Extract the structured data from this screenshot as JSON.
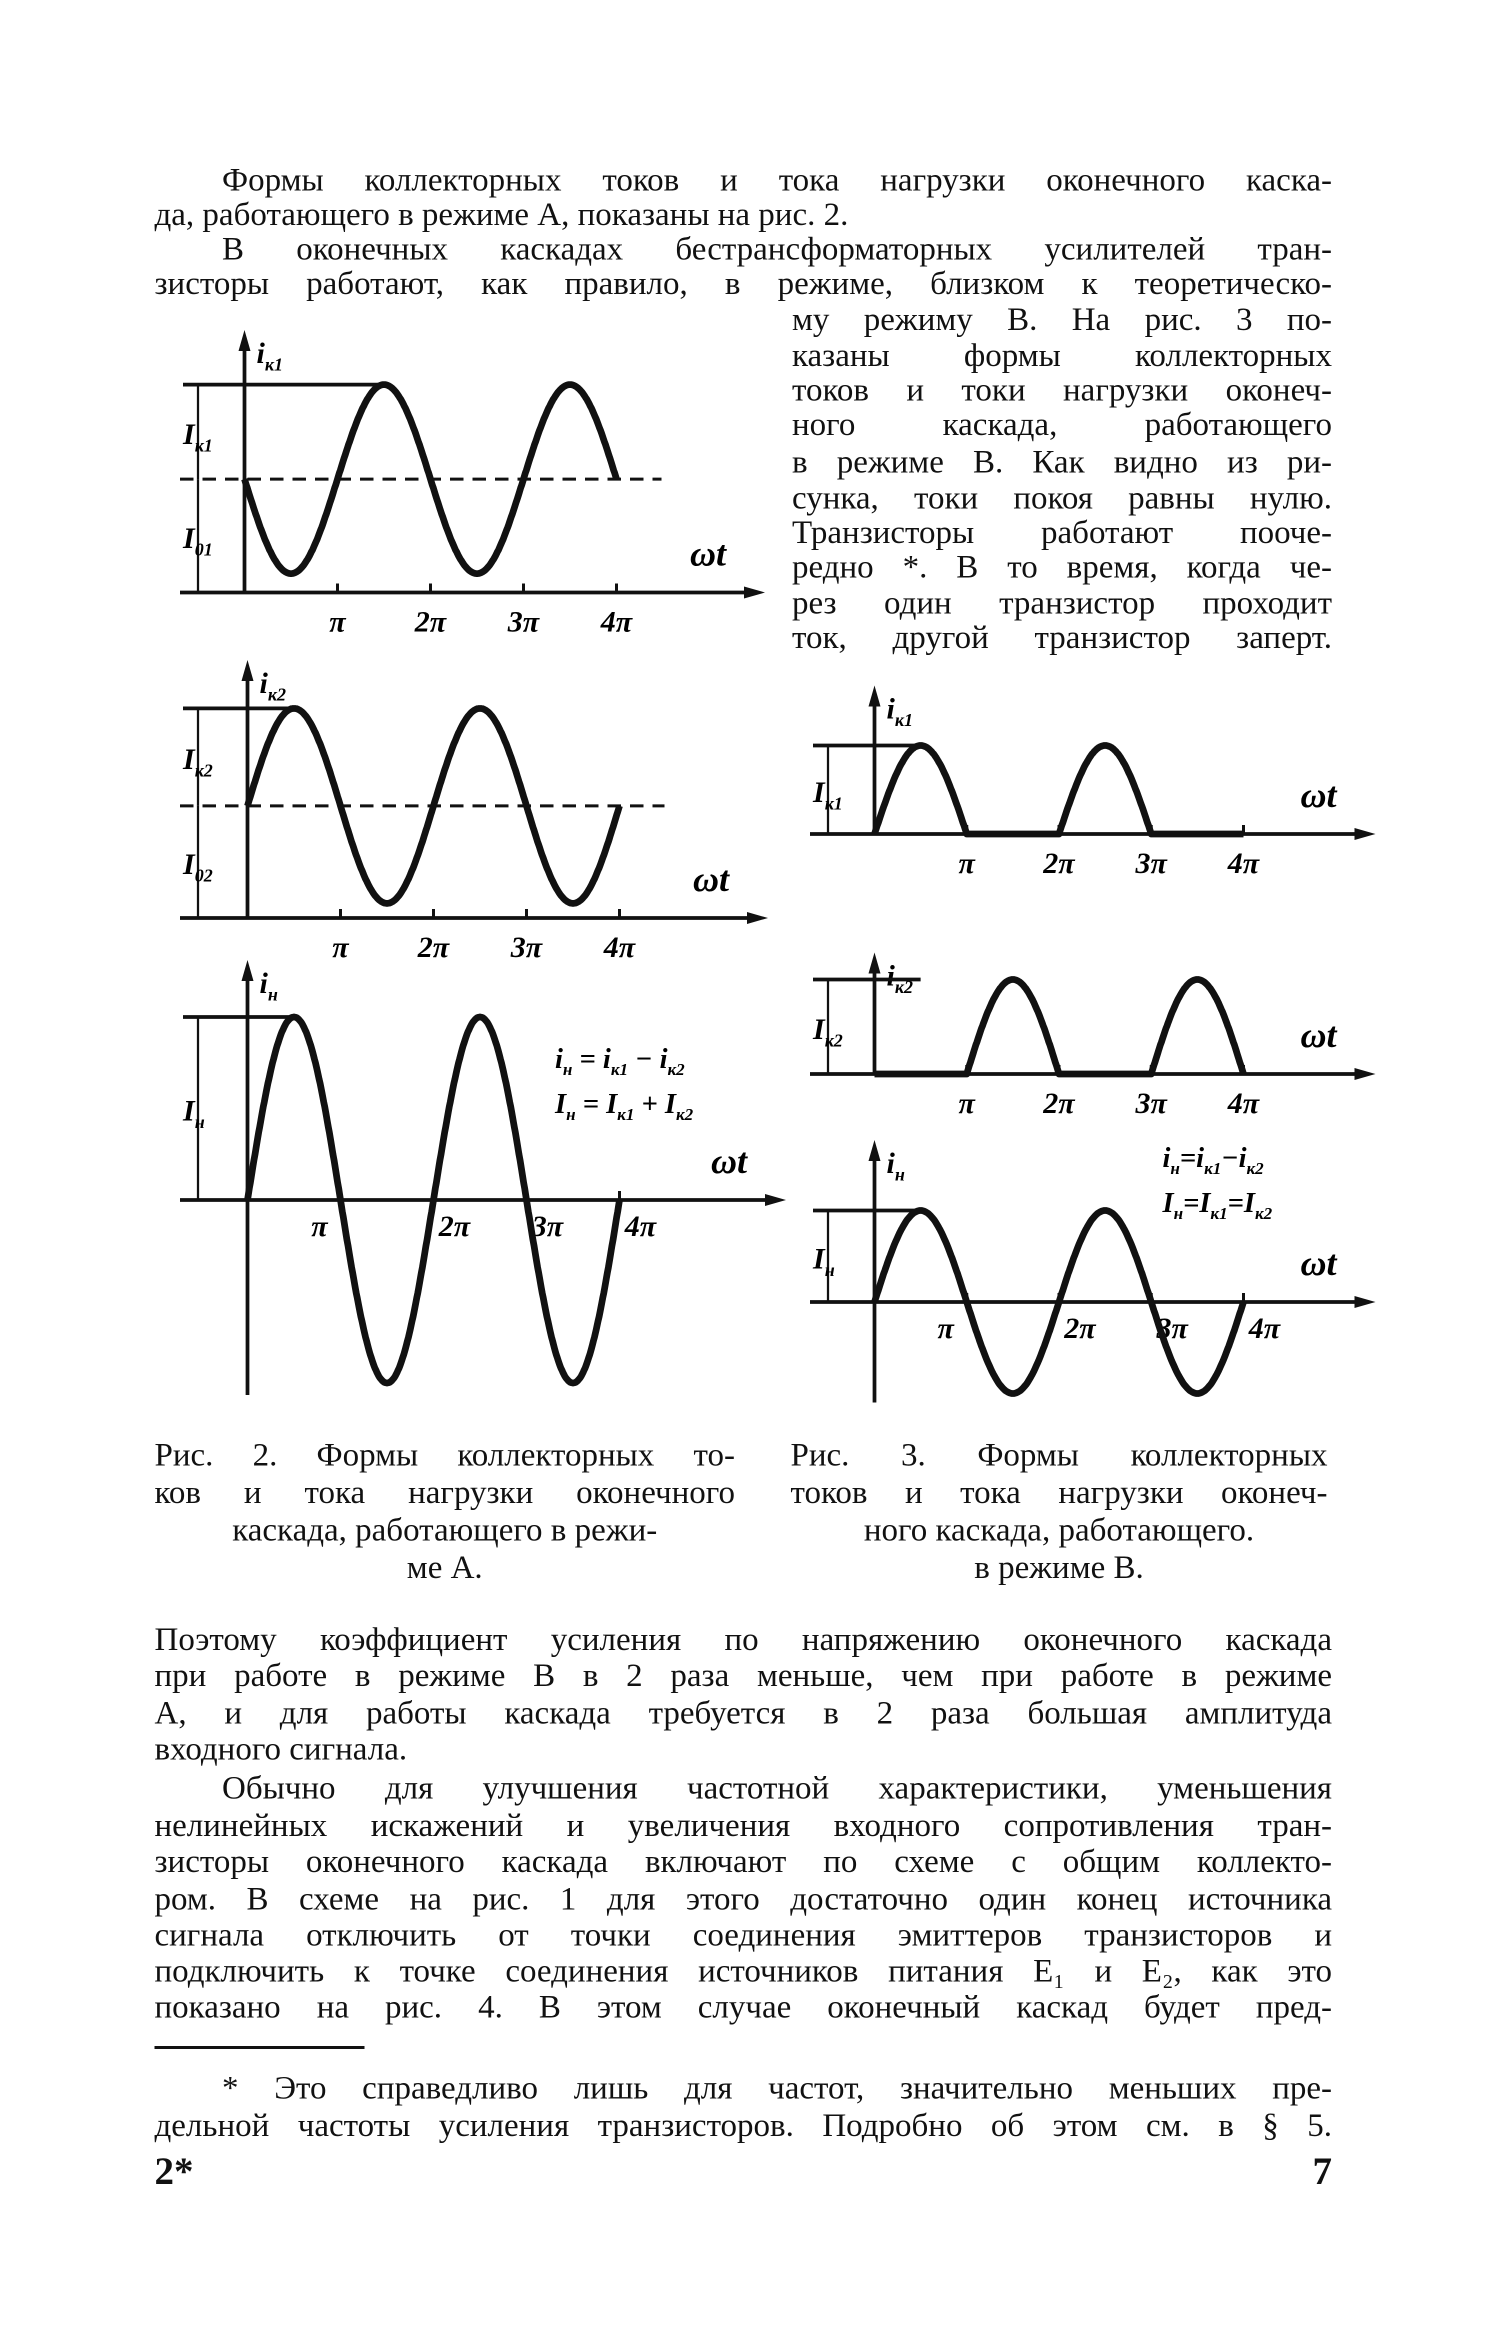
{
  "text": {
    "para1": [
      "Формы коллекторных токов и тока нагрузки оконечного каска-",
      "да, работающего в режиме А, показаны на рис. 2."
    ],
    "para2_full": [
      "В оконечных каскадах бестрансформаторных усилителей тран-",
      "зисторы работают, как правило, в режиме, близком к теоретическо-"
    ],
    "para2_column": [
      "му режиму В. На рис. 3 по-",
      "казаны формы коллекторных",
      "токов и токи нагрузки оконеч-",
      "ного каскада, работающего",
      "в режиме В. Как видно из ри-",
      "сунка, токи покоя равны нулю.",
      "Транзисторы работают пооче-",
      "редно *. В то время, когда че-",
      "рез один транзистор проходит",
      "ток, другой транзистор заперт."
    ],
    "caption_fig2": [
      "Рис. 2. Формы коллекторных то-",
      "ков и тока нагрузки оконечного",
      "каскада, работающего в режи-",
      "ме А."
    ],
    "caption_fig3": [
      "Рис. 3. Формы коллекторных",
      "токов и тока нагрузки оконеч-",
      "ного каскада, работающего.",
      "в режиме В."
    ],
    "para3": [
      "Поэтому коэффициент усиления по напряжению оконечного каскада",
      "при работе в режиме В в 2 раза меньше, чем при работе в режиме",
      "А, и для работы каскада требуется в 2 раза большая амплитуда",
      "входного сигнала."
    ],
    "para4": [
      "Обычно для улучшения частотной характеристики, уменьшения",
      "нелинейных искажений и увеличения входного сопротивления тран-",
      "зисторы оконечного каскада включают по схеме с общим коллекто-",
      "ром. В схеме на рис. 1 для этого достаточно один конец источника",
      "сигнала отключить от точки соединения эмиттеров транзисторов и",
      "подключить к точке соединения источников питания E₁ и E₂, как это",
      "показано на рис. 4. В этом случае оконечный каскад будет пред-"
    ],
    "footnote": [
      "* Это справедливо лишь для частот, значительно меньших пре-",
      "дельной частоты усиления транзисторов. Подробно об этом см. в § 5."
    ],
    "signature_mark": "2*",
    "page_number": "7"
  },
  "chart_data": [
    {
      "figure": "Рис. 2",
      "type": "line",
      "waveform": "offset sine",
      "sign": -1,
      "amplitude": 1,
      "offset": 1.2,
      "x_range_pi": [
        0,
        4
      ],
      "y_label": {
        "main": "i",
        "sub": "к1"
      },
      "amp_label": {
        "main": "I",
        "sub": "к1"
      },
      "offset_label": {
        "main": "I",
        "sub": "01"
      },
      "x_label": "ωt",
      "x_ticks": [
        "π",
        "2π",
        "3π",
        "4π"
      ],
      "dashed_quiescent_line": true
    },
    {
      "figure": "Рис. 2",
      "type": "line",
      "waveform": "offset sine",
      "sign": 1,
      "amplitude": 1,
      "offset": 1.15,
      "x_range_pi": [
        0,
        4
      ],
      "y_label": {
        "main": "i",
        "sub": "к2"
      },
      "amp_label": {
        "main": "I",
        "sub": "к2"
      },
      "offset_label": {
        "main": "I",
        "sub": "02"
      },
      "x_label": "ωt",
      "x_ticks": [
        "π",
        "2π",
        "3π",
        "4π"
      ],
      "dashed_quiescent_line": true
    },
    {
      "figure": "Рис. 2",
      "type": "line",
      "waveform": "sine",
      "sign": 1,
      "amplitude": 1,
      "offset": 0,
      "x_range_pi": [
        0,
        4
      ],
      "y_label": {
        "main": "i",
        "sub": "н"
      },
      "amp_label": {
        "main": "I",
        "sub": "н"
      },
      "x_label": "ωt",
      "x_ticks": [
        "π",
        "2π",
        "3π",
        "4π"
      ],
      "formulas": [
        [
          {
            "main": "i",
            "sub": "н"
          },
          " = ",
          {
            "main": "i",
            "sub": "к1"
          },
          " − ",
          {
            "main": "i",
            "sub": "к2"
          }
        ],
        [
          {
            "main": "I",
            "sub": "н"
          },
          " = ",
          {
            "main": "I",
            "sub": "к1"
          },
          " + ",
          {
            "main": "I",
            "sub": "к2"
          }
        ]
      ]
    },
    {
      "figure": "Рис. 3",
      "type": "line",
      "waveform": "half-wave positive",
      "sign": 1,
      "amplitude": 1,
      "offset": 0,
      "x_range_pi": [
        0,
        4
      ],
      "y_label": {
        "main": "i",
        "sub": "к1"
      },
      "amp_label": {
        "main": "I",
        "sub": "к1"
      },
      "x_label": "ωt",
      "x_ticks": [
        "π",
        "2π",
        "3π",
        "4π"
      ]
    },
    {
      "figure": "Рис. 3",
      "type": "line",
      "waveform": "half-wave negative",
      "sign": -1,
      "amplitude": 1,
      "offset": 0,
      "x_range_pi": [
        0,
        4
      ],
      "y_label": {
        "main": "i",
        "sub": "к2"
      },
      "amp_label": {
        "main": "I",
        "sub": "к2"
      },
      "x_label": "ωt",
      "x_ticks": [
        "π",
        "2π",
        "3π",
        "4π"
      ]
    },
    {
      "figure": "Рис. 3",
      "type": "line",
      "waveform": "sine",
      "sign": 1,
      "amplitude": 1,
      "offset": 0,
      "x_range_pi": [
        0,
        4
      ],
      "y_label": {
        "main": "i",
        "sub": "н"
      },
      "amp_label": {
        "main": "I",
        "sub": "н"
      },
      "x_label": "ωt",
      "x_ticks": [
        "π",
        "2π",
        "3π",
        "4π"
      ],
      "formulas": [
        [
          {
            "main": "i",
            "sub": "н"
          },
          "=",
          {
            "main": "i",
            "sub": "к1"
          },
          "−",
          {
            "main": "i",
            "sub": "к2"
          }
        ],
        [
          {
            "main": "I",
            "sub": "н"
          },
          "=",
          {
            "main": "I",
            "sub": "к1"
          },
          "=",
          {
            "main": "I",
            "sub": "к2"
          }
        ]
      ]
    }
  ]
}
